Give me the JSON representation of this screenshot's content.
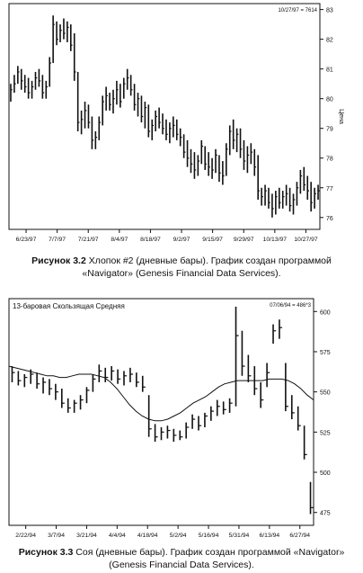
{
  "chart_data": [
    {
      "type": "bar",
      "subtype": "ohlc",
      "title": "",
      "date_stamp": "10/27/97 = 7614",
      "ylabel": "Ценa",
      "ylim": [
        75.6,
        83.2
      ],
      "yticks": [
        76,
        77,
        78,
        79,
        80,
        81,
        82,
        83
      ],
      "xticks": [
        "6/23/97",
        "7/7/97",
        "7/21/97",
        "8/4/97",
        "8/18/97",
        "9/2/97",
        "9/15/97",
        "9/29/97",
        "10/13/97",
        "10/27/97"
      ],
      "bars": [
        {
          "h": 80.5,
          "l": 79.9,
          "c": 80.3
        },
        {
          "h": 80.8,
          "l": 80.2,
          "c": 80.5
        },
        {
          "h": 81.1,
          "l": 80.5,
          "c": 80.9
        },
        {
          "h": 81.0,
          "l": 80.3,
          "c": 80.6
        },
        {
          "h": 80.8,
          "l": 80.2,
          "c": 80.4
        },
        {
          "h": 80.7,
          "l": 80.0,
          "c": 80.2
        },
        {
          "h": 80.6,
          "l": 80.0,
          "c": 80.4
        },
        {
          "h": 80.9,
          "l": 80.3,
          "c": 80.7
        },
        {
          "h": 81.0,
          "l": 80.4,
          "c": 80.6
        },
        {
          "h": 80.8,
          "l": 80.0,
          "c": 80.2
        },
        {
          "h": 80.6,
          "l": 80.0,
          "c": 80.4
        },
        {
          "h": 81.4,
          "l": 80.4,
          "c": 81.2
        },
        {
          "h": 82.8,
          "l": 81.2,
          "c": 82.5
        },
        {
          "h": 82.6,
          "l": 81.8,
          "c": 82.0
        },
        {
          "h": 82.5,
          "l": 81.9,
          "c": 82.3
        },
        {
          "h": 82.7,
          "l": 82.0,
          "c": 82.2
        },
        {
          "h": 82.6,
          "l": 81.9,
          "c": 82.4
        },
        {
          "h": 82.5,
          "l": 81.6,
          "c": 81.8
        },
        {
          "h": 82.2,
          "l": 80.6,
          "c": 80.9
        },
        {
          "h": 80.9,
          "l": 78.9,
          "c": 79.2
        },
        {
          "h": 79.6,
          "l": 78.8,
          "c": 79.3
        },
        {
          "h": 79.9,
          "l": 79.0,
          "c": 79.6
        },
        {
          "h": 79.8,
          "l": 79.0,
          "c": 79.2
        },
        {
          "h": 79.4,
          "l": 78.3,
          "c": 78.6
        },
        {
          "h": 78.9,
          "l": 78.3,
          "c": 78.7
        },
        {
          "h": 79.4,
          "l": 78.6,
          "c": 79.2
        },
        {
          "h": 80.1,
          "l": 79.1,
          "c": 79.9
        },
        {
          "h": 80.4,
          "l": 79.6,
          "c": 80.1
        },
        {
          "h": 80.2,
          "l": 79.6,
          "c": 79.8
        },
        {
          "h": 80.3,
          "l": 79.5,
          "c": 80.0
        },
        {
          "h": 80.6,
          "l": 79.8,
          "c": 80.3
        },
        {
          "h": 80.5,
          "l": 79.7,
          "c": 79.9
        },
        {
          "h": 80.7,
          "l": 80.0,
          "c": 80.5
        },
        {
          "h": 81.0,
          "l": 80.3,
          "c": 80.7
        },
        {
          "h": 80.8,
          "l": 80.1,
          "c": 80.3
        },
        {
          "h": 80.5,
          "l": 79.6,
          "c": 79.8
        },
        {
          "h": 80.2,
          "l": 79.4,
          "c": 80.0
        },
        {
          "h": 80.1,
          "l": 79.2,
          "c": 79.4
        },
        {
          "h": 79.9,
          "l": 79.0,
          "c": 79.7
        },
        {
          "h": 79.8,
          "l": 78.7,
          "c": 78.9
        },
        {
          "h": 79.3,
          "l": 78.6,
          "c": 79.1
        },
        {
          "h": 79.6,
          "l": 78.9,
          "c": 79.4
        },
        {
          "h": 79.7,
          "l": 79.0,
          "c": 79.2
        },
        {
          "h": 79.5,
          "l": 78.8,
          "c": 79.0
        },
        {
          "h": 79.3,
          "l": 78.6,
          "c": 78.8
        },
        {
          "h": 79.2,
          "l": 78.5,
          "c": 79.0
        },
        {
          "h": 79.4,
          "l": 78.7,
          "c": 79.1
        },
        {
          "h": 79.3,
          "l": 78.6,
          "c": 78.8
        },
        {
          "h": 79.0,
          "l": 78.4,
          "c": 78.7
        },
        {
          "h": 78.8,
          "l": 78.0,
          "c": 78.2
        },
        {
          "h": 78.6,
          "l": 77.7,
          "c": 78.0
        },
        {
          "h": 78.3,
          "l": 77.5,
          "c": 77.8
        },
        {
          "h": 78.2,
          "l": 77.3,
          "c": 77.6
        },
        {
          "h": 78.1,
          "l": 77.4,
          "c": 77.9
        },
        {
          "h": 78.6,
          "l": 77.8,
          "c": 78.4
        },
        {
          "h": 78.4,
          "l": 77.6,
          "c": 77.8
        },
        {
          "h": 78.2,
          "l": 77.4,
          "c": 77.7
        },
        {
          "h": 78.0,
          "l": 77.3,
          "c": 77.6
        },
        {
          "h": 78.3,
          "l": 77.5,
          "c": 78.1
        },
        {
          "h": 78.1,
          "l": 77.2,
          "c": 77.5
        },
        {
          "h": 77.9,
          "l": 77.1,
          "c": 77.4
        },
        {
          "h": 78.5,
          "l": 77.4,
          "c": 78.3
        },
        {
          "h": 79.1,
          "l": 78.1,
          "c": 78.9
        },
        {
          "h": 79.3,
          "l": 78.3,
          "c": 78.6
        },
        {
          "h": 79.0,
          "l": 78.2,
          "c": 78.8
        },
        {
          "h": 79.0,
          "l": 78.0,
          "c": 78.3
        },
        {
          "h": 78.6,
          "l": 77.6,
          "c": 77.9
        },
        {
          "h": 78.4,
          "l": 77.5,
          "c": 78.1
        },
        {
          "h": 78.5,
          "l": 77.8,
          "c": 78.2
        },
        {
          "h": 78.3,
          "l": 77.4,
          "c": 77.7
        },
        {
          "h": 78.1,
          "l": 76.6,
          "c": 76.9
        },
        {
          "h": 77.0,
          "l": 76.4,
          "c": 76.7
        },
        {
          "h": 77.1,
          "l": 76.4,
          "c": 76.9
        },
        {
          "h": 77.0,
          "l": 76.3,
          "c": 76.5
        },
        {
          "h": 76.8,
          "l": 76.0,
          "c": 76.3
        },
        {
          "h": 76.9,
          "l": 76.1,
          "c": 76.7
        },
        {
          "h": 77.0,
          "l": 76.3,
          "c": 76.5
        },
        {
          "h": 76.9,
          "l": 76.3,
          "c": 76.7
        },
        {
          "h": 77.1,
          "l": 76.4,
          "c": 76.8
        },
        {
          "h": 77.0,
          "l": 76.2,
          "c": 76.4
        },
        {
          "h": 76.8,
          "l": 76.1,
          "c": 76.6
        },
        {
          "h": 77.2,
          "l": 76.4,
          "c": 77.0
        },
        {
          "h": 77.6,
          "l": 76.8,
          "c": 77.4
        },
        {
          "h": 77.7,
          "l": 76.9,
          "c": 77.1
        },
        {
          "h": 77.4,
          "l": 76.6,
          "c": 76.9
        },
        {
          "h": 77.2,
          "l": 76.2,
          "c": 76.5
        },
        {
          "h": 77.0,
          "l": 76.3,
          "c": 76.8
        },
        {
          "h": 77.1,
          "l": 76.6,
          "c": 76.9
        }
      ]
    },
    {
      "type": "bar",
      "subtype": "ohlc",
      "title": "13-баровая Скользящая Средняя",
      "date_stamp": "07/06/94 = 486*3",
      "ylim": [
        467,
        608
      ],
      "yticks": [
        475,
        500,
        525,
        550,
        575,
        600
      ],
      "xticks": [
        "2/22/94",
        "3/7/94",
        "3/21/94",
        "4/4/94",
        "4/18/94",
        "5/2/94",
        "5/16/94",
        "5/31/94",
        "6/13/94",
        "6/27/94"
      ],
      "moving_average": [
        566,
        565,
        564,
        563,
        562,
        561,
        560,
        560,
        559,
        559,
        560,
        561,
        561,
        561,
        560,
        559,
        556,
        552,
        547,
        542,
        538,
        535,
        533,
        532,
        532,
        533,
        535,
        537,
        540,
        543,
        545,
        547,
        550,
        553,
        555,
        556,
        557,
        557,
        557,
        557,
        557,
        558,
        558,
        558,
        557,
        555,
        552,
        548,
        545
      ],
      "bars": [
        {
          "h": 566,
          "l": 556,
          "c": 562
        },
        {
          "h": 563,
          "l": 554,
          "c": 557
        },
        {
          "h": 561,
          "l": 553,
          "c": 559
        },
        {
          "h": 564,
          "l": 555,
          "c": 561
        },
        {
          "h": 562,
          "l": 552,
          "c": 555
        },
        {
          "h": 559,
          "l": 549,
          "c": 556
        },
        {
          "h": 558,
          "l": 548,
          "c": 552
        },
        {
          "h": 555,
          "l": 545,
          "c": 550
        },
        {
          "h": 552,
          "l": 540,
          "c": 543
        },
        {
          "h": 546,
          "l": 537,
          "c": 540
        },
        {
          "h": 545,
          "l": 537,
          "c": 543
        },
        {
          "h": 548,
          "l": 539,
          "c": 545
        },
        {
          "h": 553,
          "l": 543,
          "c": 551
        },
        {
          "h": 561,
          "l": 550,
          "c": 558
        },
        {
          "h": 567,
          "l": 556,
          "c": 563
        },
        {
          "h": 565,
          "l": 556,
          "c": 559
        },
        {
          "h": 566,
          "l": 557,
          "c": 563
        },
        {
          "h": 564,
          "l": 555,
          "c": 558
        },
        {
          "h": 563,
          "l": 554,
          "c": 560
        },
        {
          "h": 565,
          "l": 556,
          "c": 561
        },
        {
          "h": 562,
          "l": 553,
          "c": 556
        },
        {
          "h": 560,
          "l": 550,
          "c": 553
        },
        {
          "h": 548,
          "l": 522,
          "c": 527
        },
        {
          "h": 530,
          "l": 519,
          "c": 522
        },
        {
          "h": 528,
          "l": 520,
          "c": 525
        },
        {
          "h": 529,
          "l": 521,
          "c": 526
        },
        {
          "h": 527,
          "l": 519,
          "c": 523
        },
        {
          "h": 526,
          "l": 520,
          "c": 522
        },
        {
          "h": 531,
          "l": 521,
          "c": 528
        },
        {
          "h": 536,
          "l": 527,
          "c": 533
        },
        {
          "h": 535,
          "l": 526,
          "c": 529
        },
        {
          "h": 537,
          "l": 528,
          "c": 535
        },
        {
          "h": 541,
          "l": 532,
          "c": 538
        },
        {
          "h": 545,
          "l": 535,
          "c": 541
        },
        {
          "h": 544,
          "l": 536,
          "c": 539
        },
        {
          "h": 546,
          "l": 537,
          "c": 543
        },
        {
          "h": 603,
          "l": 541,
          "c": 585
        },
        {
          "h": 588,
          "l": 560,
          "c": 566
        },
        {
          "h": 573,
          "l": 556,
          "c": 560
        },
        {
          "h": 566,
          "l": 548,
          "c": 552
        },
        {
          "h": 556,
          "l": 540,
          "c": 545
        },
        {
          "h": 568,
          "l": 553,
          "c": 562
        },
        {
          "h": 592,
          "l": 580,
          "c": 588
        },
        {
          "h": 595,
          "l": 583,
          "c": 590
        },
        {
          "h": 568,
          "l": 538,
          "c": 541
        },
        {
          "h": 548,
          "l": 533,
          "c": 537
        },
        {
          "h": 541,
          "l": 526,
          "c": 529
        },
        {
          "h": 529,
          "l": 508,
          "c": 511
        },
        {
          "h": 494,
          "l": 474,
          "c": 478
        }
      ]
    }
  ],
  "captions": {
    "fig32_num": "Рисунок 3.2",
    "fig32_line1": " Хлопок #2 (дневные бары). График создан программой",
    "fig32_line2": "«Navigator» (Genesis Financial Data Services).",
    "fig33_num": "Рисунок 3.3",
    "fig33_line1": " Соя (дневные бары). График создан программой «Navigator»",
    "fig33_line2": "(Genesis Financial Data Services)."
  }
}
